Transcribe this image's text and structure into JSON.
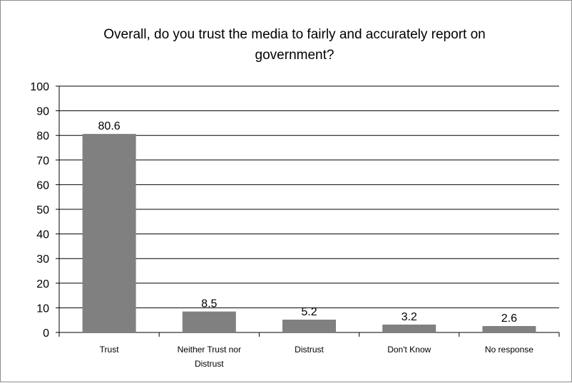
{
  "chart_data": {
    "type": "bar",
    "title_lines": [
      "Overall, do you trust the media to fairly and accurately report on",
      "government?"
    ],
    "categories": [
      "Trust",
      "Neither Trust nor Distrust",
      "Distrust",
      "Don't Know",
      "No response"
    ],
    "category_label_lines": [
      [
        "Trust"
      ],
      [
        "Neither Trust nor",
        "Distrust"
      ],
      [
        "Distrust"
      ],
      [
        "Don't Know"
      ],
      [
        "No response"
      ]
    ],
    "values": [
      80.6,
      8.5,
      5.2,
      3.2,
      2.6
    ],
    "data_labels": [
      "80.6",
      "8.5",
      "5.2",
      "3.2",
      "2.6"
    ],
    "ylim": [
      0,
      100
    ],
    "yticks": [
      0,
      10,
      20,
      30,
      40,
      50,
      60,
      70,
      80,
      90,
      100
    ],
    "grid": true,
    "legend": "none",
    "bar_color": "#808080",
    "grid_color": "#000000"
  }
}
